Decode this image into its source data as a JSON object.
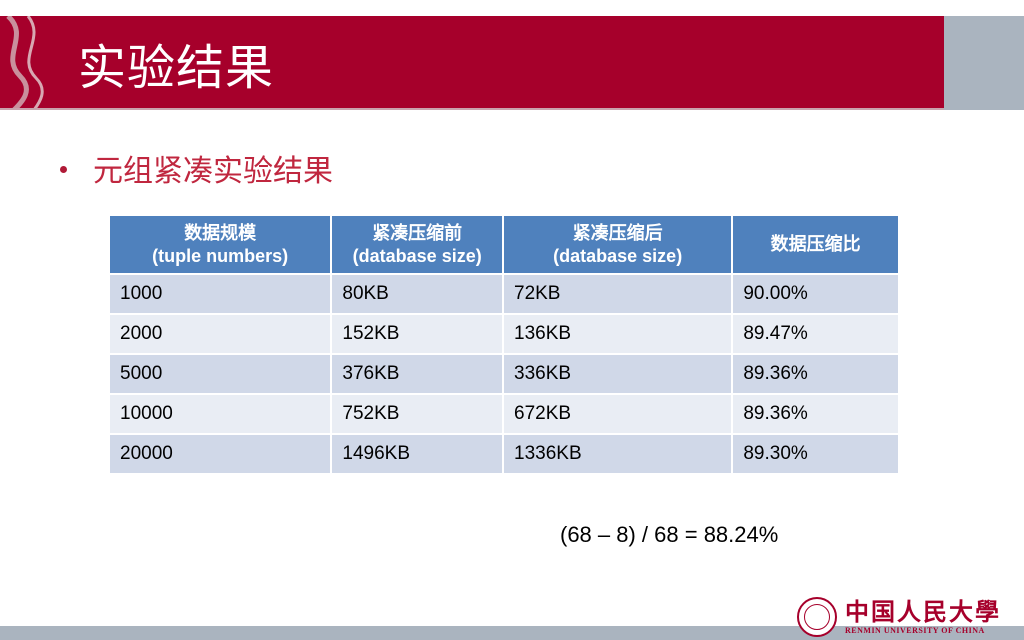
{
  "header": {
    "title": "实验结果"
  },
  "bullet": {
    "text": "元组紧凑实验结果"
  },
  "table": {
    "headers": [
      {
        "line1": "数据规模",
        "line2": "(tuple numbers)"
      },
      {
        "line1": "紧凑压缩前",
        "line2": "(database size)"
      },
      {
        "line1": "紧凑压缩后",
        "line2": "(database size)"
      },
      {
        "line1": "数据压缩比",
        "line2": ""
      }
    ],
    "rows": [
      [
        "1000",
        "80KB",
        "72KB",
        "90.00%"
      ],
      [
        "2000",
        "152KB",
        "136KB",
        "89.47%"
      ],
      [
        "5000",
        "376KB",
        "336KB",
        "89.36%"
      ],
      [
        "10000",
        "752KB",
        "672KB",
        "89.36%"
      ],
      [
        "20000",
        "1496KB",
        "1336KB",
        "89.30%"
      ]
    ]
  },
  "formula": "(68 – 8) / 68 = 88.24%",
  "logo": {
    "cn": "中国人民大學",
    "en": "RENMIN UNIVERSITY OF CHINA"
  },
  "colors": {
    "accent": "#a6002b",
    "table_header": "#4f81bd",
    "row_odd": "#d0d8e8",
    "row_even": "#e9edf4"
  }
}
